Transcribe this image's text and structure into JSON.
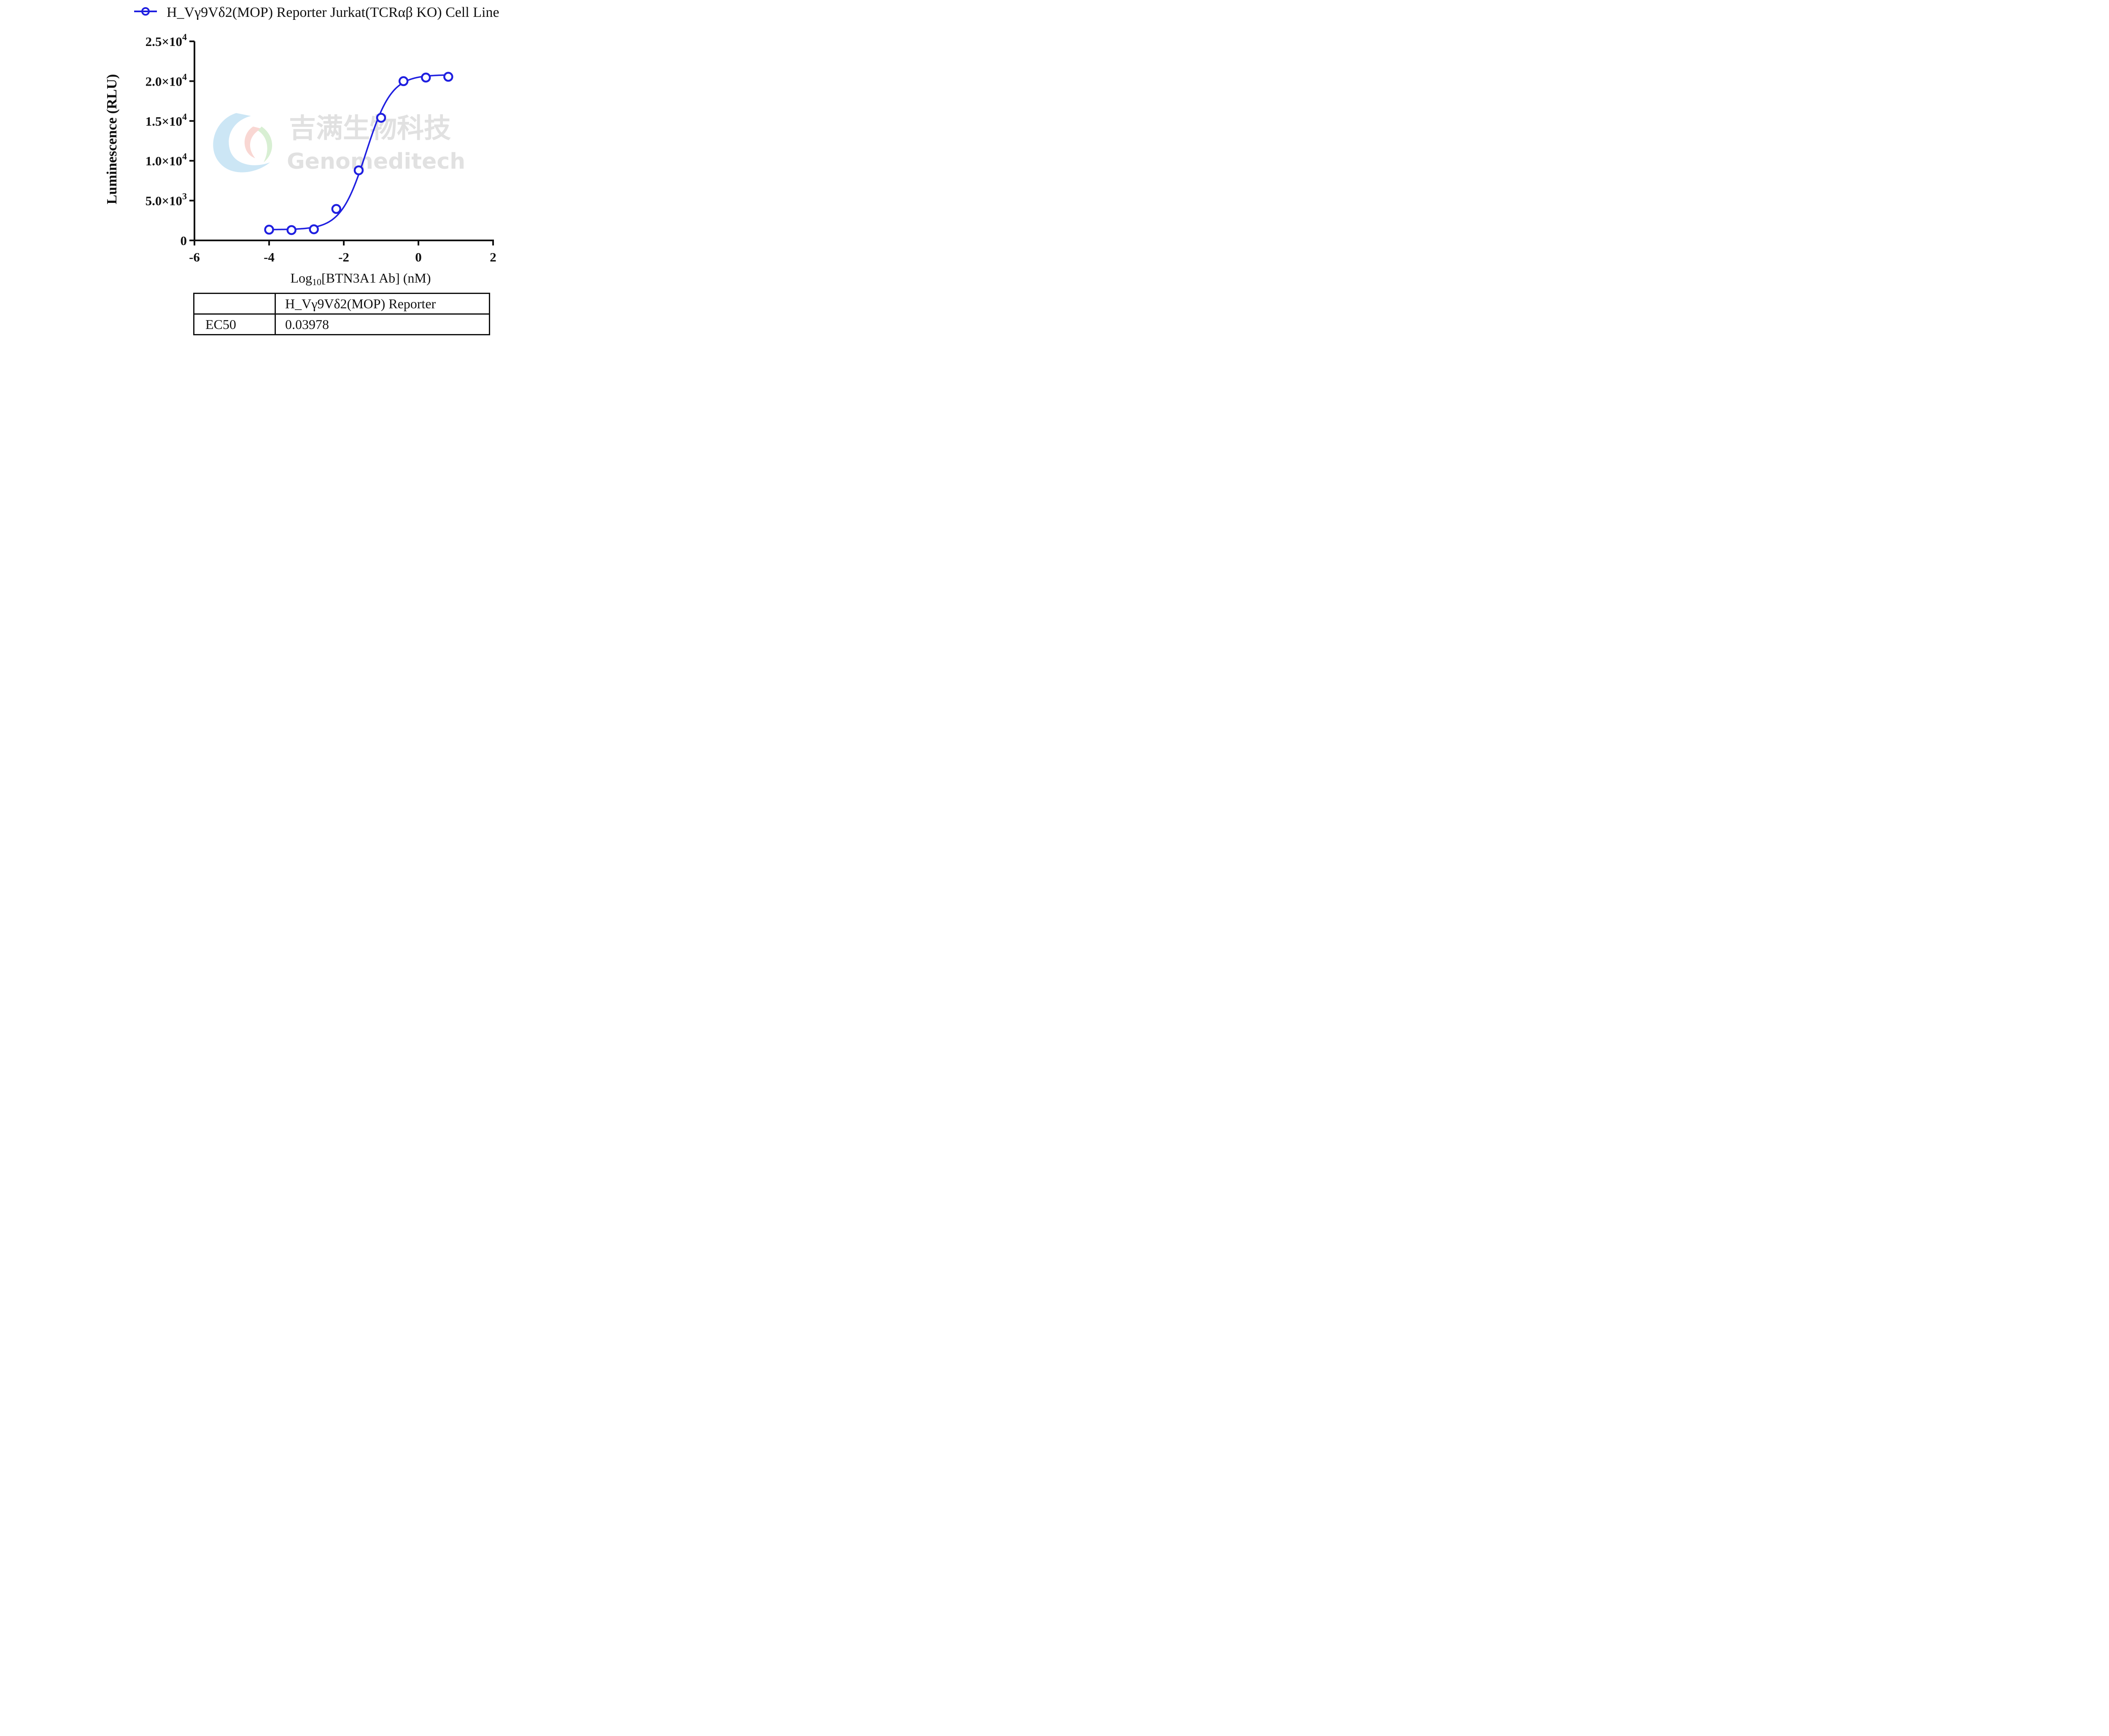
{
  "chart_data": {
    "type": "scatter",
    "title": "",
    "xlabel": "Log10[BTN3A1 Ab] (nM)",
    "xlabel_parts": {
      "prefix": "Log",
      "subscript": "10",
      "rest": "[BTN3A1 Ab] (nM)"
    },
    "ylabel": "Luminescence (RLU)",
    "xlim": [
      -6,
      2
    ],
    "ylim": [
      0,
      25000
    ],
    "x_ticks": [
      -6,
      -4,
      -2,
      0,
      2
    ],
    "x_tick_labels": [
      "-6",
      "-4",
      "-2",
      "0",
      "2"
    ],
    "y_ticks": [
      0,
      5000,
      10000,
      15000,
      20000,
      25000
    ],
    "y_tick_labels": [
      {
        "mantissa": "0",
        "exp": ""
      },
      {
        "mantissa": "5.0×10",
        "exp": "3"
      },
      {
        "mantissa": "1.0×10",
        "exp": "4"
      },
      {
        "mantissa": "1.5×10",
        "exp": "4"
      },
      {
        "mantissa": "2.0×10",
        "exp": "4"
      },
      {
        "mantissa": "2.5×10",
        "exp": "4"
      }
    ],
    "grid": false,
    "legend_position": "top",
    "series": [
      {
        "name": "H_Vγ9Vδ2(MOP) Reporter Jurkat(TCRαβ KO) Cell Line",
        "color": "#1f1fe0",
        "marker": "open-circle",
        "fit": "4PL sigmoidal",
        "fit_params": {
          "bottom": 1350,
          "top": 20800,
          "log_ec50": -1.4,
          "hill": 1.28
        },
        "x": [
          -4.0,
          -3.4,
          -2.8,
          -2.2,
          -1.6,
          -1.0,
          -0.4,
          0.2,
          0.8
        ],
        "y": [
          1350,
          1300,
          1400,
          3950,
          8800,
          15400,
          20000,
          20450,
          20550
        ]
      }
    ]
  },
  "table": {
    "header": [
      "",
      "H_Vγ9Vδ2(MOP) Reporter"
    ],
    "rows": [
      [
        "EC50",
        "0.03978"
      ]
    ]
  },
  "watermark": {
    "cn_text": "吉满生物科技",
    "en_text": "Genomeditech"
  }
}
